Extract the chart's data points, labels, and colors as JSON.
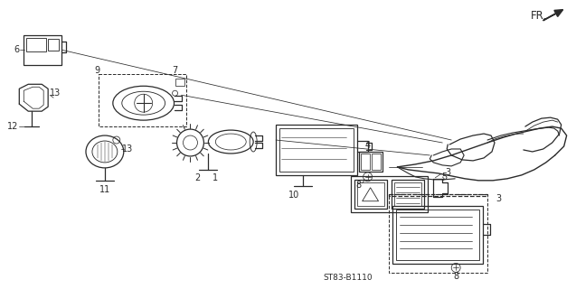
{
  "bg_color": "#ffffff",
  "line_color": "#2a2a2a",
  "part_number": "ST83-B1110",
  "fr_text": "FR.",
  "lw": 0.9
}
